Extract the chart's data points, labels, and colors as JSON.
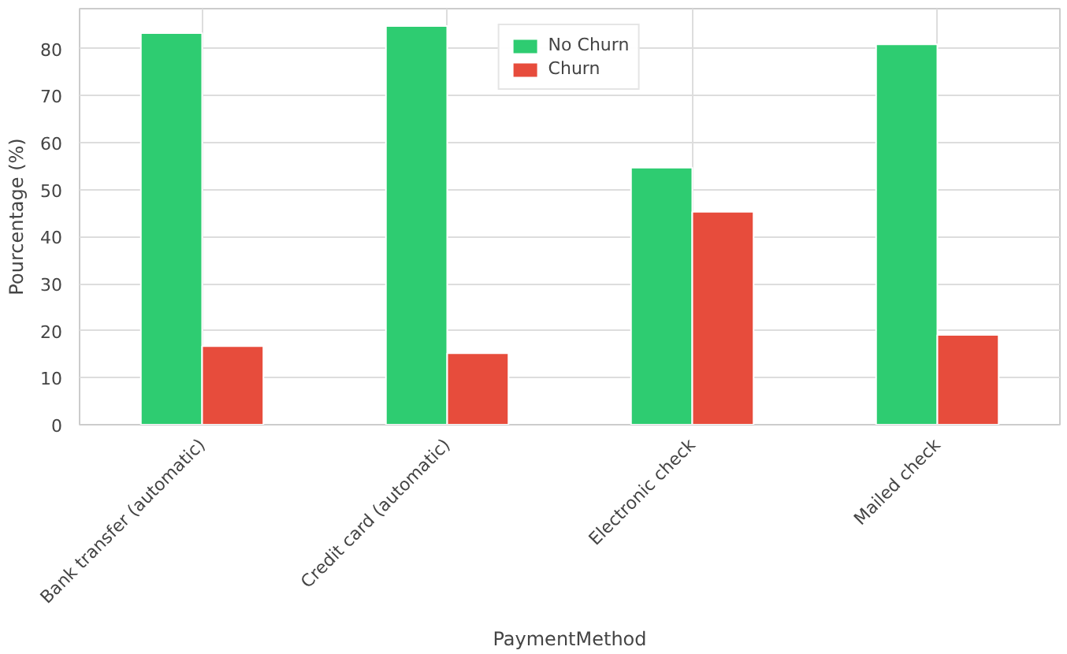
{
  "chart_data": {
    "type": "bar",
    "xlabel": "PaymentMethod",
    "ylabel": "Pourcentage (%)",
    "categories": [
      "Bank transfer (automatic)",
      "Credit card (automatic)",
      "Electronic check",
      "Mailed check"
    ],
    "series": [
      {
        "name": "No Churn",
        "color": "#2ecc71",
        "values": [
          83.3,
          84.8,
          54.7,
          80.9
        ]
      },
      {
        "name": "Churn",
        "color": "#e74c3c",
        "values": [
          16.7,
          15.2,
          45.3,
          19.1
        ]
      }
    ],
    "ylim": [
      0,
      88.5
    ],
    "yticks": [
      0,
      10,
      20,
      30,
      40,
      50,
      60,
      70,
      80
    ],
    "grid": true,
    "legend": "top"
  }
}
